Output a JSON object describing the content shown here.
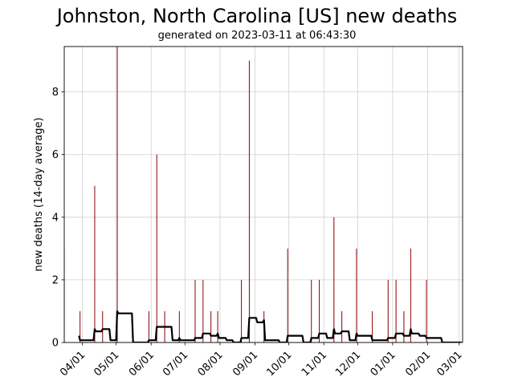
{
  "chart_data": {
    "type": "bar",
    "title": "Johnston, North Carolina [US] new deaths",
    "subtitle": "generated on 2023-03-11 at 06:43:30",
    "xlabel": "",
    "ylabel": "new deaths (14-day average)",
    "xlim": [
      "2022-03-16",
      "2023-03-04"
    ],
    "ylim": [
      0,
      9.45
    ],
    "yticks": [
      0,
      2,
      4,
      6,
      8
    ],
    "xticks": [
      {
        "date": "2022-04-01",
        "label": "04/01"
      },
      {
        "date": "2022-05-01",
        "label": "05/01"
      },
      {
        "date": "2022-06-01",
        "label": "06/01"
      },
      {
        "date": "2022-07-01",
        "label": "07/01"
      },
      {
        "date": "2022-08-01",
        "label": "08/01"
      },
      {
        "date": "2022-09-01",
        "label": "09/01"
      },
      {
        "date": "2022-10-01",
        "label": "10/01"
      },
      {
        "date": "2022-11-01",
        "label": "11/01"
      },
      {
        "date": "2022-12-01",
        "label": "12/01"
      },
      {
        "date": "2023-01-01",
        "label": "01/01"
      },
      {
        "date": "2023-02-01",
        "label": "02/01"
      },
      {
        "date": "2023-03-01",
        "label": "03/01"
      }
    ],
    "grid": true,
    "bar_color": "#8b0000",
    "line_color": "#000000",
    "series": [
      {
        "kind": "daily bars",
        "start": "2022-03-16",
        "end": "2023-03-03",
        "nonzero": [
          {
            "date": "2022-03-16",
            "value": 3
          },
          {
            "date": "2022-03-30",
            "value": 1
          },
          {
            "date": "2022-04-12",
            "value": 5
          },
          {
            "date": "2022-04-19",
            "value": 1
          },
          {
            "date": "2022-05-02",
            "value": 13
          },
          {
            "date": "2022-05-30",
            "value": 1
          },
          {
            "date": "2022-06-06",
            "value": 6
          },
          {
            "date": "2022-06-13",
            "value": 1
          },
          {
            "date": "2022-06-26",
            "value": 1
          },
          {
            "date": "2022-07-10",
            "value": 2
          },
          {
            "date": "2022-07-17",
            "value": 2
          },
          {
            "date": "2022-07-24",
            "value": 1
          },
          {
            "date": "2022-07-30",
            "value": 1
          },
          {
            "date": "2022-08-20",
            "value": 2
          },
          {
            "date": "2022-08-27",
            "value": 9
          },
          {
            "date": "2022-09-09",
            "value": 1
          },
          {
            "date": "2022-09-30",
            "value": 3
          },
          {
            "date": "2022-10-21",
            "value": 2
          },
          {
            "date": "2022-10-28",
            "value": 2
          },
          {
            "date": "2022-11-10",
            "value": 4
          },
          {
            "date": "2022-11-17",
            "value": 1
          },
          {
            "date": "2022-11-30",
            "value": 3
          },
          {
            "date": "2022-12-14",
            "value": 1
          },
          {
            "date": "2022-12-28",
            "value": 2
          },
          {
            "date": "2023-01-04",
            "value": 2
          },
          {
            "date": "2023-01-11",
            "value": 1
          },
          {
            "date": "2023-01-17",
            "value": 3
          },
          {
            "date": "2023-01-31",
            "value": 2
          }
        ]
      },
      {
        "kind": "14-day average line",
        "window_days": 14
      }
    ]
  }
}
